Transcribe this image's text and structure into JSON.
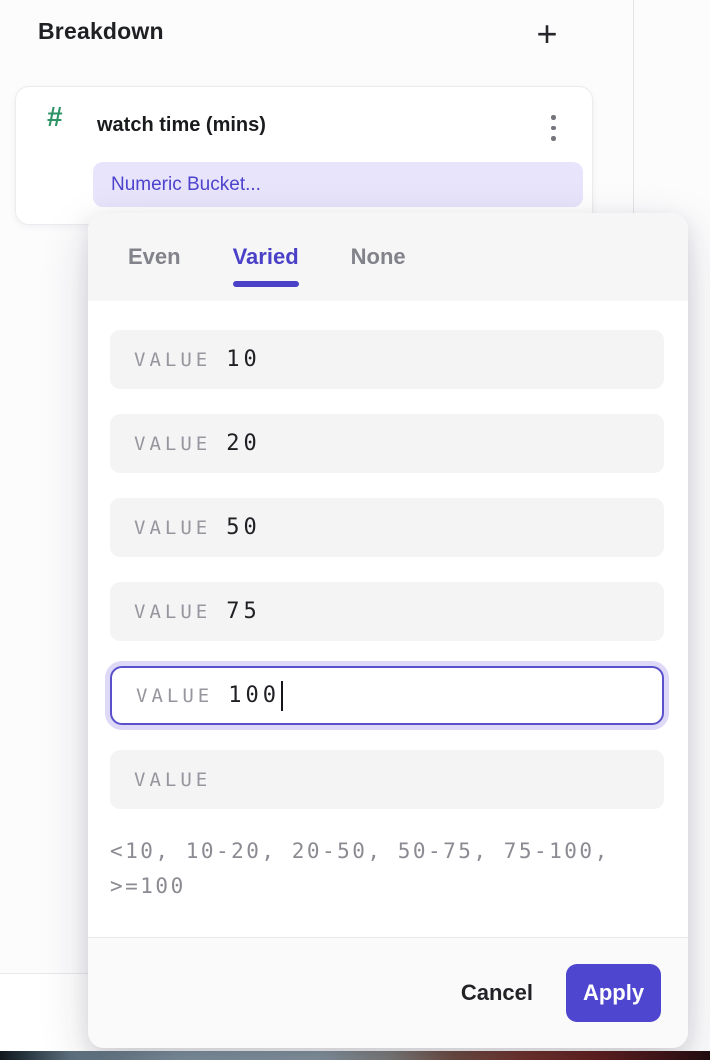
{
  "header": {
    "title": "Breakdown",
    "add_icon": "+"
  },
  "breakdown_card": {
    "numeric_type_icon": "#",
    "property_name": "watch time (mins)",
    "bucketing_label": "Numeric Bucket..."
  },
  "bucket_popup": {
    "tabs": [
      {
        "label": "Even",
        "active": false
      },
      {
        "label": "Varied",
        "active": true
      },
      {
        "label": "None",
        "active": false
      }
    ],
    "rows": [
      {
        "label": "VALUE",
        "value": "10",
        "focused": false
      },
      {
        "label": "VALUE",
        "value": "20",
        "focused": false
      },
      {
        "label": "VALUE",
        "value": "50",
        "focused": false
      },
      {
        "label": "VALUE",
        "value": "75",
        "focused": false
      },
      {
        "label": "VALUE",
        "value": "100",
        "focused": true
      },
      {
        "label": "VALUE",
        "value": "",
        "focused": false
      }
    ],
    "preview": "<10, 10-20, 20-50, 50-75, 75-100, >=100",
    "cancel_label": "Cancel",
    "apply_label": "Apply"
  },
  "colors": {
    "accent_purple": "#4f46d0",
    "tab_active_purple": "#4b41c8",
    "chip_background": "#e7e4fb",
    "chip_text": "#4e43cd",
    "numeric_green": "#2e9466",
    "focus_border": "#5a50cc",
    "focus_ring": "#ded9f7",
    "row_background": "#f4f4f5"
  }
}
